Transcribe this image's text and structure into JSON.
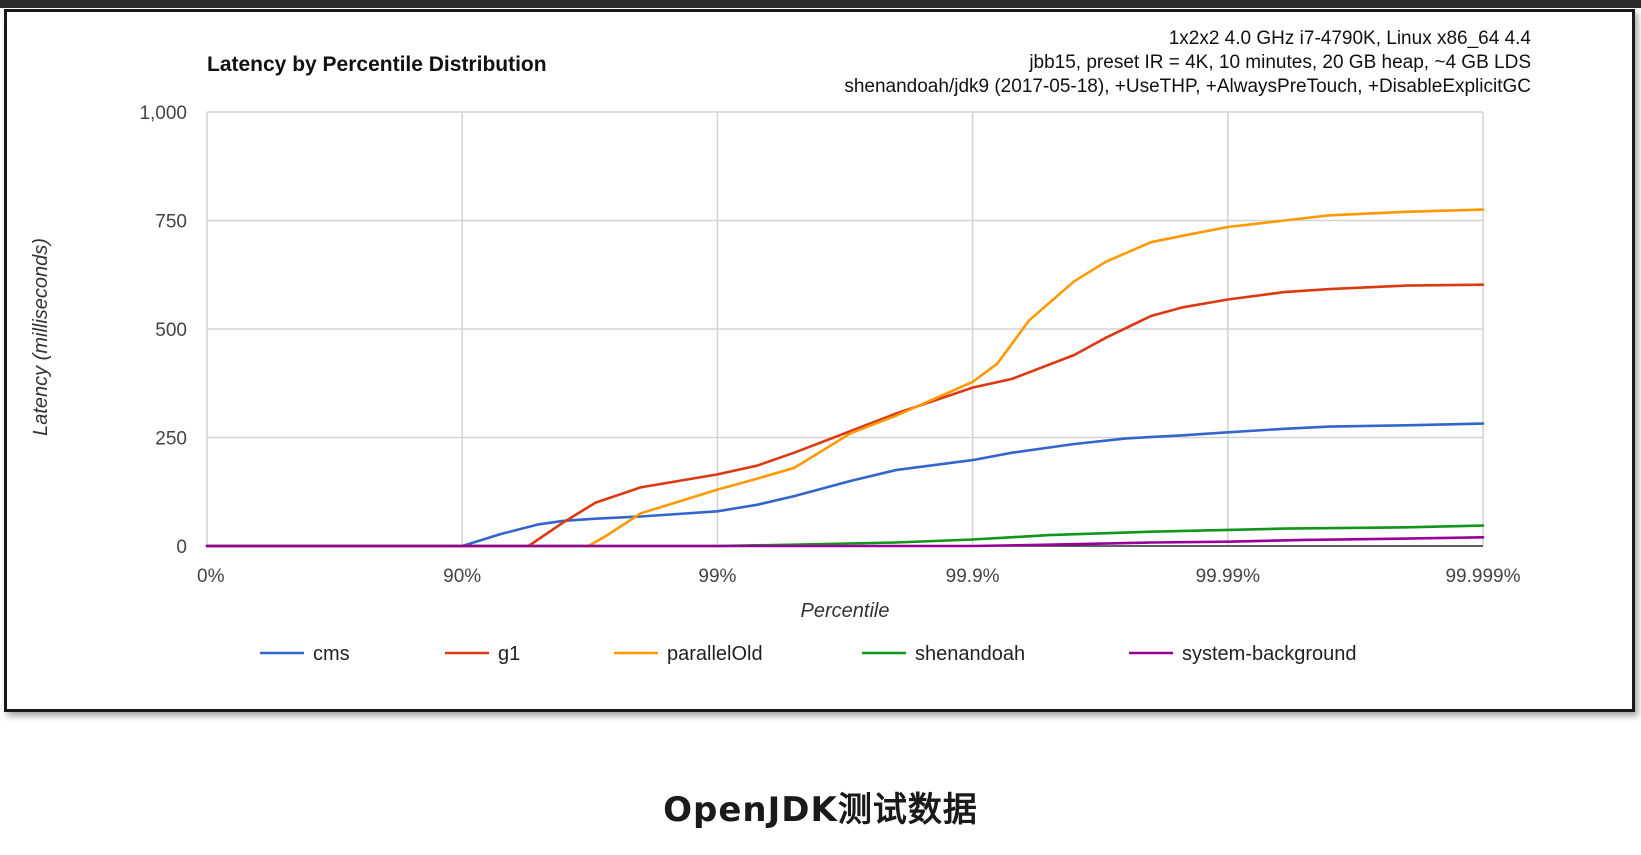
{
  "caption": "OpenJDK测试数据",
  "chart_data": {
    "type": "line",
    "title": "Latency by Percentile Distribution",
    "subtitle_lines": [
      "1x2x2 4.0 GHz i7-4790K, Linux x86_64 4.4",
      "jbb15, preset IR = 4K, 10 minutes, 20 GB heap, ~4 GB LDS",
      "shenandoah/jdk9 (2017-05-18), +UseTHP, +AlwaysPreTouch, +DisableExplicitGC"
    ],
    "xlabel": "Percentile",
    "ylabel": "Latency (milliseconds)",
    "x_scale": "log-percentile",
    "x_ticks": [
      "0%",
      "90%",
      "99%",
      "99.9%",
      "99.99%",
      "99.999%"
    ],
    "y_ticks": [
      "0",
      "250",
      "500",
      "750",
      "1,000"
    ],
    "ylim": [
      0,
      1000
    ],
    "xlim": [
      0,
      99.999
    ],
    "grid": true,
    "legend_position": "bottom",
    "series": [
      {
        "name": "cms",
        "color": "#3366cc",
        "points": [
          [
            0,
            0
          ],
          [
            80,
            0
          ],
          [
            90,
            0
          ],
          [
            93,
            28
          ],
          [
            95,
            50
          ],
          [
            96,
            58
          ],
          [
            97,
            63
          ],
          [
            98,
            68
          ],
          [
            99,
            80
          ],
          [
            99.3,
            95
          ],
          [
            99.5,
            115
          ],
          [
            99.7,
            150
          ],
          [
            99.8,
            175
          ],
          [
            99.9,
            198
          ],
          [
            99.93,
            215
          ],
          [
            99.96,
            235
          ],
          [
            99.975,
            248
          ],
          [
            99.985,
            255
          ],
          [
            99.99,
            262
          ],
          [
            99.994,
            270
          ],
          [
            99.996,
            275
          ],
          [
            99.998,
            278
          ],
          [
            99.999,
            282
          ]
        ]
      },
      {
        "name": "g1",
        "color": "#dc3912",
        "points": [
          [
            0,
            0
          ],
          [
            90,
            0
          ],
          [
            94.5,
            0
          ],
          [
            96,
            55
          ],
          [
            97,
            100
          ],
          [
            98,
            135
          ],
          [
            99,
            165
          ],
          [
            99.3,
            185
          ],
          [
            99.5,
            215
          ],
          [
            99.7,
            265
          ],
          [
            99.8,
            305
          ],
          [
            99.9,
            365
          ],
          [
            99.93,
            385
          ],
          [
            99.96,
            440
          ],
          [
            99.97,
            480
          ],
          [
            99.98,
            530
          ],
          [
            99.985,
            550
          ],
          [
            99.99,
            568
          ],
          [
            99.994,
            585
          ],
          [
            99.996,
            592
          ],
          [
            99.998,
            600
          ],
          [
            99.999,
            602
          ]
        ]
      },
      {
        "name": "parallelOld",
        "color": "#ff9900",
        "points": [
          [
            0,
            0
          ],
          [
            90,
            0
          ],
          [
            96.8,
            0
          ],
          [
            97.3,
            25
          ],
          [
            98,
            75
          ],
          [
            99,
            130
          ],
          [
            99.3,
            155
          ],
          [
            99.5,
            180
          ],
          [
            99.7,
            260
          ],
          [
            99.8,
            300
          ],
          [
            99.9,
            378
          ],
          [
            99.92,
            420
          ],
          [
            99.94,
            520
          ],
          [
            99.96,
            610
          ],
          [
            99.97,
            655
          ],
          [
            99.98,
            700
          ],
          [
            99.985,
            715
          ],
          [
            99.99,
            735
          ],
          [
            99.994,
            750
          ],
          [
            99.996,
            762
          ],
          [
            99.998,
            770
          ],
          [
            99.999,
            775
          ]
        ]
      },
      {
        "name": "shenandoah",
        "color": "#109618",
        "points": [
          [
            0,
            0
          ],
          [
            99,
            0
          ],
          [
            99.5,
            3
          ],
          [
            99.8,
            8
          ],
          [
            99.9,
            15
          ],
          [
            99.95,
            25
          ],
          [
            99.98,
            33
          ],
          [
            99.99,
            37
          ],
          [
            99.994,
            40
          ],
          [
            99.998,
            43
          ],
          [
            99.999,
            47
          ]
        ]
      },
      {
        "name": "system-background",
        "color": "#990099",
        "points": [
          [
            0,
            0
          ],
          [
            99.9,
            0
          ],
          [
            99.95,
            3
          ],
          [
            99.98,
            8
          ],
          [
            99.99,
            10
          ],
          [
            99.995,
            14
          ],
          [
            99.998,
            17
          ],
          [
            99.999,
            20
          ]
        ]
      }
    ]
  }
}
